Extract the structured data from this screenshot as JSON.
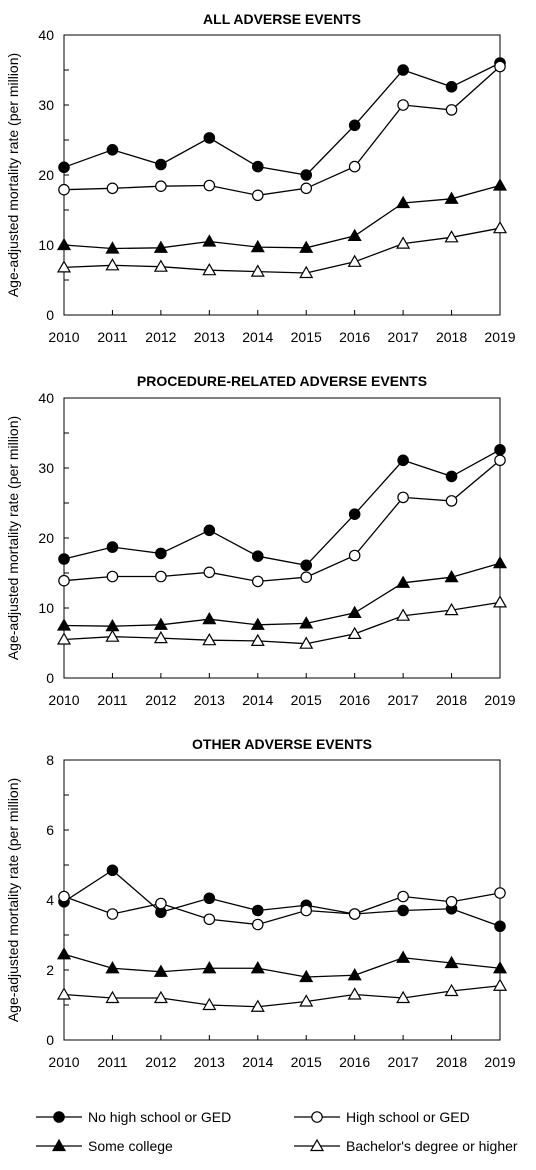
{
  "chart_data": [
    {
      "type": "line",
      "title": "ALL ADVERSE EVENTS",
      "xlabel": "",
      "ylabel": "Age-adjusted mortality rate (per million)",
      "ylim": [
        0,
        40
      ],
      "yticks": [
        0,
        10,
        20,
        30,
        40
      ],
      "x": [
        2010,
        2011,
        2012,
        2013,
        2014,
        2015,
        2016,
        2017,
        2018,
        2019
      ],
      "grid": false,
      "series": [
        {
          "name": "No high school or GED",
          "values": [
            21.1,
            23.6,
            21.5,
            25.3,
            21.2,
            20.0,
            27.1,
            35.0,
            32.6,
            36.0
          ]
        },
        {
          "name": "High school or GED",
          "values": [
            17.9,
            18.1,
            18.4,
            18.5,
            17.1,
            18.1,
            21.2,
            30.0,
            29.3,
            35.5
          ]
        },
        {
          "name": "Some college",
          "values": [
            10.0,
            9.5,
            9.6,
            10.5,
            9.7,
            9.6,
            11.3,
            16.0,
            16.6,
            18.5
          ]
        },
        {
          "name": "Bachelor's degree or higher",
          "values": [
            6.8,
            7.1,
            6.9,
            6.4,
            6.2,
            6.0,
            7.6,
            10.2,
            11.1,
            12.4
          ]
        }
      ]
    },
    {
      "type": "line",
      "title": "PROCEDURE-RELATED ADVERSE EVENTS",
      "xlabel": "",
      "ylabel": "Age-adjusted mortality rate (per million)",
      "ylim": [
        0,
        40
      ],
      "yticks": [
        0,
        10,
        20,
        30,
        40
      ],
      "x": [
        2010,
        2011,
        2012,
        2013,
        2014,
        2015,
        2016,
        2017,
        2018,
        2019
      ],
      "grid": false,
      "series": [
        {
          "name": "No high school or GED",
          "values": [
            17.0,
            18.7,
            17.8,
            21.1,
            17.4,
            16.1,
            23.4,
            31.1,
            28.8,
            32.6
          ]
        },
        {
          "name": "High school or GED",
          "values": [
            13.9,
            14.5,
            14.5,
            15.1,
            13.8,
            14.4,
            17.5,
            25.8,
            25.3,
            31.1
          ]
        },
        {
          "name": "Some college",
          "values": [
            7.5,
            7.4,
            7.6,
            8.4,
            7.6,
            7.8,
            9.3,
            13.6,
            14.4,
            16.4
          ]
        },
        {
          "name": "Bachelor's degree or higher",
          "values": [
            5.5,
            5.9,
            5.7,
            5.4,
            5.3,
            4.9,
            6.3,
            8.9,
            9.7,
            10.8
          ]
        }
      ]
    },
    {
      "type": "line",
      "title": "OTHER ADVERSE EVENTS",
      "xlabel": "",
      "ylabel": "Age-adjusted mortality rate (per million)",
      "ylim": [
        0,
        8
      ],
      "yticks": [
        0,
        2,
        4,
        6,
        8
      ],
      "x": [
        2010,
        2011,
        2012,
        2013,
        2014,
        2015,
        2016,
        2017,
        2018,
        2019
      ],
      "grid": false,
      "series": [
        {
          "name": "No high school or GED",
          "values": [
            3.95,
            4.85,
            3.65,
            4.05,
            3.7,
            3.85,
            3.6,
            3.7,
            3.75,
            3.25
          ]
        },
        {
          "name": "High school or GED",
          "values": [
            4.1,
            3.6,
            3.9,
            3.45,
            3.3,
            3.7,
            3.6,
            4.1,
            3.95,
            4.2
          ]
        },
        {
          "name": "Some college",
          "values": [
            2.45,
            2.05,
            1.95,
            2.05,
            2.05,
            1.8,
            1.85,
            2.35,
            2.2,
            2.05
          ]
        },
        {
          "name": "Bachelor's degree or higher",
          "values": [
            1.3,
            1.2,
            1.2,
            1.0,
            0.95,
            1.1,
            1.3,
            1.2,
            1.4,
            1.55
          ]
        }
      ]
    }
  ],
  "legend": {
    "placement": "bottom",
    "items": [
      {
        "label": "No high school or GED",
        "marker": "filled-circle"
      },
      {
        "label": "High school or GED",
        "marker": "open-circle"
      },
      {
        "label": "Some college",
        "marker": "filled-triangle"
      },
      {
        "label": "Bachelor's degree or higher",
        "marker": "open-triangle"
      }
    ]
  }
}
